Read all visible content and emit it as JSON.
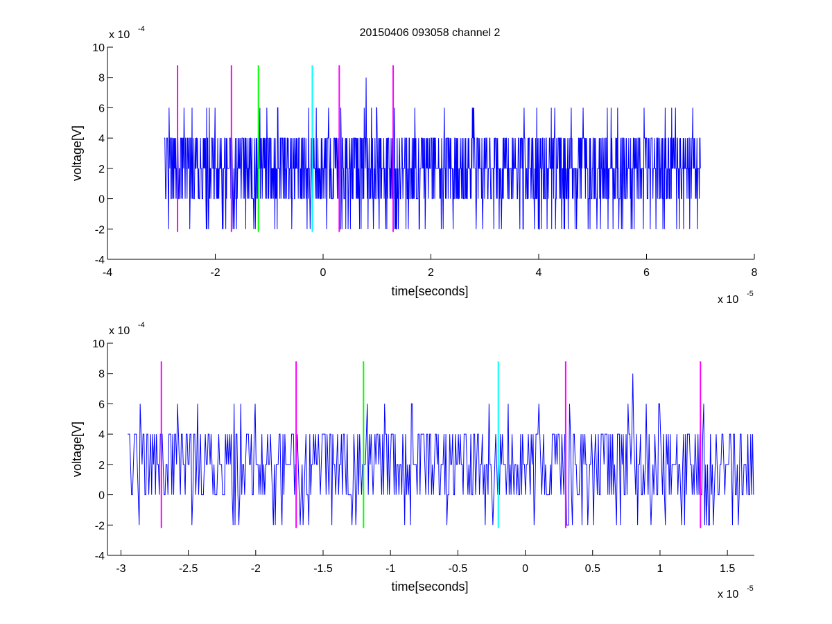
{
  "figure": {
    "background": "#ffffff"
  },
  "colors": {
    "signal": "#0000ff",
    "magenta": "#ff00ff",
    "green": "#00ff00",
    "cyan": "#00ffff",
    "axis": "#000000"
  },
  "chart_data": [
    {
      "type": "line",
      "title": "20150406 093058 channel 2",
      "xlabel": "time[seconds]",
      "ylabel": "voltage[V]",
      "xlim": [
        -4e-05,
        8e-05
      ],
      "ylim": [
        -0.0004,
        0.001
      ],
      "x_exponent_label": "x 10",
      "x_exponent": "-5",
      "y_exponent_label": "x 10",
      "y_exponent": "-4",
      "xticks": [
        -4,
        -2,
        0,
        2,
        4,
        6,
        8
      ],
      "yticks": [
        -4,
        -2,
        0,
        2,
        4,
        6,
        8,
        10
      ],
      "grid": false,
      "series": [
        {
          "color": "#0000ff",
          "x_start": -2.95e-05,
          "x_end": 7e-05,
          "level_step": 0.0002,
          "levels_observed": [
            -0.0002,
            0,
            0.0002,
            0.0004,
            0.0006,
            0.0008
          ],
          "peak": {
            "x": 8e-06,
            "y": 0.0008
          },
          "description_of_trace": "dense quantized noise mostly between 0 and 4e-4 V"
        }
      ],
      "vlines": [
        {
          "x": -2.7e-05,
          "color": "#ff00ff",
          "ymin": -0.00022,
          "ymax": 0.00088
        },
        {
          "x": -1.7e-05,
          "color": "#ff00ff",
          "ymin": -0.00022,
          "ymax": 0.00088
        },
        {
          "x": -1.2e-05,
          "color": "#00ff00",
          "ymin": -0.00022,
          "ymax": 0.00088
        },
        {
          "x": -2e-06,
          "color": "#00ffff",
          "ymin": -0.00022,
          "ymax": 0.00088
        },
        {
          "x": 3e-06,
          "color": "#ff00ff",
          "ymin": -0.00022,
          "ymax": 0.00088
        },
        {
          "x": 1.3e-05,
          "color": "#ff00ff",
          "ymin": -0.00022,
          "ymax": 0.00088
        }
      ]
    },
    {
      "type": "line",
      "title": "",
      "xlabel": "time[seconds]",
      "ylabel": "voltage[V]",
      "xlim": [
        -3.1e-05,
        1.7e-05
      ],
      "ylim": [
        -0.0004,
        0.001
      ],
      "x_exponent_label": "x 10",
      "x_exponent": "-5",
      "y_exponent_label": "x 10",
      "y_exponent": "-4",
      "xticks": [
        -3,
        -2.5,
        -2,
        -1.5,
        -1,
        -0.5,
        0,
        0.5,
        1,
        1.5
      ],
      "yticks": [
        -4,
        -2,
        0,
        2,
        4,
        6,
        8,
        10
      ],
      "grid": false,
      "series": [
        {
          "color": "#0000ff",
          "x_start": -2.95e-05,
          "x_end": 1.7e-05,
          "level_step": 0.0002,
          "levels_observed": [
            -0.0002,
            0,
            0.0002,
            0.0004,
            0.0006,
            0.0008
          ],
          "peak": {
            "x": 8e-06,
            "y": 0.0008
          },
          "description_of_trace": "zoomed view of the same signal"
        }
      ],
      "vlines": [
        {
          "x": -2.7e-05,
          "color": "#ff00ff",
          "ymin": -0.00022,
          "ymax": 0.00088
        },
        {
          "x": -1.7e-05,
          "color": "#ff00ff",
          "ymin": -0.00022,
          "ymax": 0.00088
        },
        {
          "x": -1.2e-05,
          "color": "#00ff00",
          "ymin": -0.00022,
          "ymax": 0.00088
        },
        {
          "x": -2e-06,
          "color": "#00ffff",
          "ymin": -0.00022,
          "ymax": 0.00088
        },
        {
          "x": 3e-06,
          "color": "#ff00ff",
          "ymin": -0.00022,
          "ymax": 0.00088
        },
        {
          "x": 1.3e-05,
          "color": "#ff00ff",
          "ymin": -0.00022,
          "ymax": 0.00088
        }
      ]
    }
  ]
}
